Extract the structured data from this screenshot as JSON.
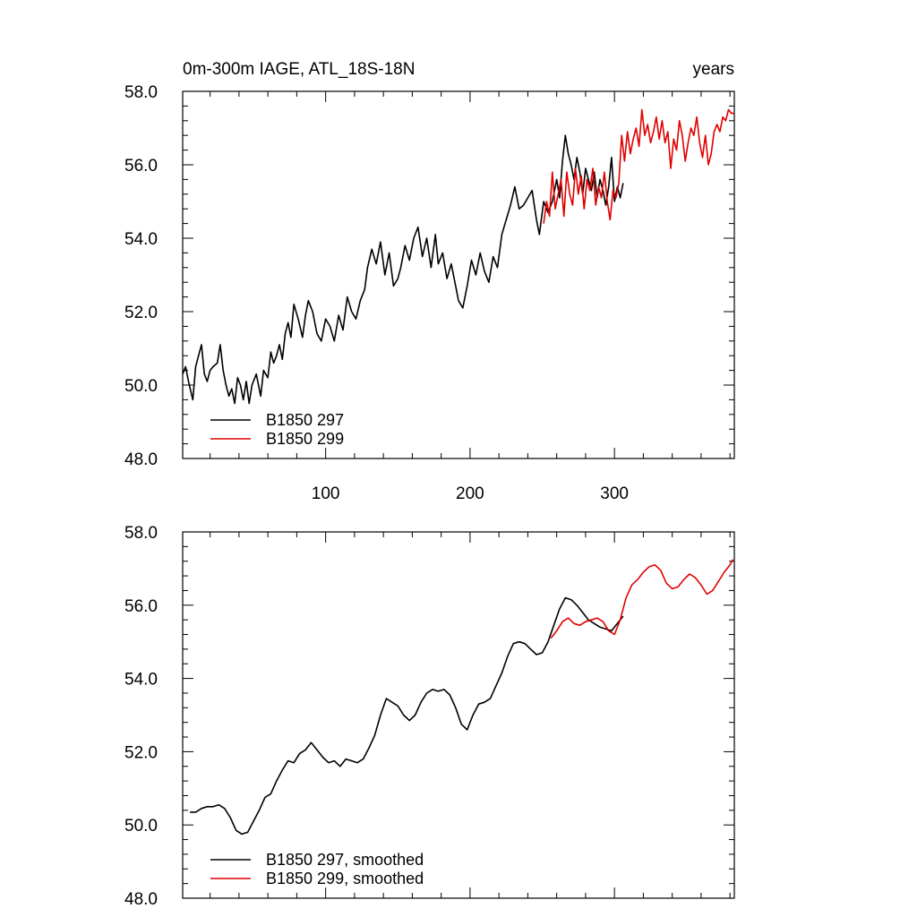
{
  "title_left": "0m-300m IAGE, ATL_18S-18N",
  "title_right": "years",
  "chart_data": [
    {
      "type": "line",
      "xlim": [
        1,
        383
      ],
      "ylim": [
        48,
        58
      ],
      "yticks": [
        48,
        50,
        52,
        54,
        56,
        58
      ],
      "ytick_labels": [
        "48.0",
        "50.0",
        "52.0",
        "54.0",
        "56.0",
        "58.0"
      ],
      "xticks": [
        100,
        200,
        300
      ],
      "xtick_labels": [
        "100",
        "200",
        "300"
      ],
      "legend": [
        {
          "name": "B1850 297",
          "color": "#000000"
        },
        {
          "name": "B1850 299",
          "color": "#e00000"
        }
      ],
      "series": [
        {
          "name": "B1850 297",
          "color": "#000000",
          "x": [
            1,
            3,
            5,
            8,
            10,
            12,
            14,
            16,
            18,
            20,
            22,
            25,
            27,
            29,
            31,
            33,
            35,
            37,
            39,
            41,
            43,
            45,
            47,
            49,
            52,
            55,
            57,
            60,
            62,
            64,
            66,
            68,
            70,
            72,
            74,
            76,
            78,
            81,
            84,
            86,
            88,
            91,
            94,
            97,
            100,
            103,
            106,
            109,
            112,
            115,
            118,
            121,
            124,
            127,
            129,
            132,
            135,
            138,
            141,
            144,
            147,
            150,
            152,
            155,
            158,
            161,
            164,
            167,
            170,
            173,
            176,
            178,
            181,
            184,
            187,
            190,
            192,
            195,
            198,
            201,
            204,
            207,
            210,
            213,
            216,
            219,
            222,
            225,
            228,
            231,
            234,
            237,
            240,
            243,
            246,
            248,
            251,
            254,
            257,
            260,
            262,
            264,
            266,
            268,
            270,
            272,
            274,
            276,
            278,
            280,
            282,
            284,
            286,
            288,
            290,
            292,
            294,
            296,
            298,
            300,
            302,
            304,
            306
          ],
          "y": [
            50.3,
            50.5,
            50.1,
            49.6,
            50.5,
            50.8,
            51.1,
            50.3,
            50.1,
            50.4,
            50.5,
            50.6,
            51.1,
            50.4,
            50.0,
            49.7,
            49.9,
            49.5,
            50.2,
            50.0,
            49.6,
            50.1,
            49.5,
            50.0,
            50.3,
            49.7,
            50.4,
            50.2,
            50.9,
            50.6,
            50.8,
            51.1,
            50.7,
            51.4,
            51.7,
            51.3,
            52.2,
            51.8,
            51.3,
            51.9,
            52.3,
            52.0,
            51.4,
            51.2,
            51.8,
            51.6,
            51.2,
            51.9,
            51.5,
            52.4,
            52.0,
            51.8,
            52.3,
            52.6,
            53.2,
            53.7,
            53.3,
            53.9,
            53.0,
            53.6,
            52.7,
            52.9,
            53.2,
            53.8,
            53.4,
            54.0,
            54.3,
            53.5,
            54.0,
            53.2,
            54.1,
            53.3,
            53.6,
            52.9,
            53.3,
            52.7,
            52.3,
            52.1,
            52.7,
            53.4,
            53.0,
            53.6,
            53.1,
            52.8,
            53.5,
            53.2,
            54.1,
            54.5,
            54.9,
            55.4,
            54.8,
            54.9,
            55.1,
            55.3,
            54.5,
            54.1,
            55.0,
            54.7,
            55.0,
            55.6,
            55.1,
            56.1,
            56.8,
            56.3,
            56.0,
            55.6,
            56.2,
            55.8,
            55.2,
            55.9,
            55.6,
            55.3,
            55.8,
            55.1,
            55.6,
            55.3,
            54.9,
            55.4,
            56.2,
            55.0,
            55.4,
            55.1,
            55.5
          ]
        },
        {
          "name": "B1850 299",
          "color": "#e00000",
          "x": [
            251,
            253,
            255,
            257,
            259,
            261,
            263,
            265,
            267,
            269,
            271,
            273,
            275,
            277,
            279,
            281,
            283,
            285,
            287,
            289,
            291,
            293,
            295,
            297,
            299,
            301,
            303,
            305,
            307,
            309,
            311,
            313,
            315,
            317,
            319,
            321,
            323,
            325,
            327,
            329,
            331,
            333,
            335,
            337,
            339,
            341,
            343,
            345,
            347,
            349,
            351,
            353,
            355,
            357,
            359,
            361,
            363,
            365,
            367,
            369,
            371,
            373,
            375,
            377,
            379,
            381,
            383
          ],
          "y": [
            54.4,
            55.0,
            54.6,
            55.8,
            54.8,
            55.2,
            55.6,
            54.6,
            55.8,
            55.2,
            54.9,
            55.9,
            55.2,
            55.7,
            54.8,
            55.6,
            55.3,
            55.9,
            54.9,
            55.4,
            55.1,
            55.8,
            55.0,
            54.5,
            55.3,
            55.1,
            55.5,
            56.8,
            56.1,
            56.9,
            56.3,
            56.7,
            57.0,
            56.5,
            57.5,
            56.8,
            57.1,
            56.6,
            56.9,
            57.3,
            56.7,
            57.2,
            56.6,
            56.9,
            55.9,
            56.7,
            56.4,
            57.2,
            56.8,
            56.1,
            56.6,
            57.0,
            56.8,
            57.3,
            56.6,
            56.2,
            56.8,
            56.0,
            56.3,
            56.9,
            57.1,
            56.9,
            57.3,
            57.2,
            57.5,
            57.4,
            57.4
          ]
        }
      ]
    },
    {
      "type": "line",
      "xlim": [
        1,
        383
      ],
      "ylim": [
        48,
        58
      ],
      "yticks": [
        48,
        50,
        52,
        54,
        56,
        58
      ],
      "ytick_labels": [
        "48.0",
        "50.0",
        "52.0",
        "54.0",
        "56.0",
        "58.0"
      ],
      "xticks": [
        100,
        200,
        300
      ],
      "legend": [
        {
          "name": "B1850 297, smoothed",
          "color": "#000000"
        },
        {
          "name": "B1850 299, smoothed",
          "color": "#e00000"
        }
      ],
      "series": [
        {
          "name": "B1850 297, smoothed",
          "color": "#000000",
          "x": [
            6,
            10,
            14,
            18,
            22,
            26,
            30,
            34,
            38,
            42,
            46,
            50,
            54,
            58,
            62,
            66,
            70,
            74,
            78,
            82,
            86,
            90,
            94,
            98,
            102,
            106,
            110,
            114,
            118,
            122,
            126,
            130,
            134,
            138,
            142,
            146,
            150,
            154,
            158,
            162,
            166,
            170,
            174,
            178,
            182,
            186,
            190,
            194,
            198,
            202,
            206,
            210,
            214,
            218,
            222,
            226,
            230,
            234,
            238,
            242,
            246,
            250,
            254,
            258,
            262,
            266,
            270,
            274,
            278,
            282,
            286,
            290,
            294,
            298,
            302,
            306
          ],
          "y": [
            50.35,
            50.35,
            50.45,
            50.5,
            50.5,
            50.55,
            50.45,
            50.2,
            49.85,
            49.75,
            49.8,
            50.1,
            50.4,
            50.75,
            50.85,
            51.2,
            51.5,
            51.75,
            51.7,
            51.95,
            52.05,
            52.25,
            52.05,
            51.85,
            51.7,
            51.75,
            51.6,
            51.8,
            51.75,
            51.7,
            51.8,
            52.1,
            52.45,
            53.0,
            53.45,
            53.35,
            53.25,
            53.0,
            52.85,
            53.0,
            53.35,
            53.6,
            53.7,
            53.65,
            53.7,
            53.55,
            53.2,
            52.75,
            52.6,
            53.0,
            53.3,
            53.35,
            53.45,
            53.8,
            54.15,
            54.6,
            54.95,
            55.0,
            54.95,
            54.8,
            54.65,
            54.7,
            55.0,
            55.45,
            55.9,
            56.2,
            56.15,
            56.0,
            55.8,
            55.6,
            55.5,
            55.4,
            55.35,
            55.3,
            55.5,
            55.7
          ]
        },
        {
          "name": "B1850 299, smoothed",
          "color": "#e00000",
          "x": [
            256,
            260,
            264,
            268,
            272,
            276,
            280,
            284,
            288,
            292,
            296,
            300,
            304,
            308,
            312,
            316,
            320,
            324,
            328,
            332,
            336,
            340,
            344,
            348,
            352,
            356,
            360,
            364,
            368,
            372,
            376,
            380,
            382
          ],
          "y": [
            55.1,
            55.3,
            55.55,
            55.65,
            55.5,
            55.45,
            55.55,
            55.6,
            55.65,
            55.55,
            55.3,
            55.2,
            55.6,
            56.2,
            56.55,
            56.7,
            56.9,
            57.05,
            57.1,
            56.95,
            56.6,
            56.45,
            56.5,
            56.7,
            56.85,
            56.75,
            56.55,
            56.3,
            56.4,
            56.65,
            56.9,
            57.1,
            57.25
          ]
        }
      ]
    }
  ]
}
